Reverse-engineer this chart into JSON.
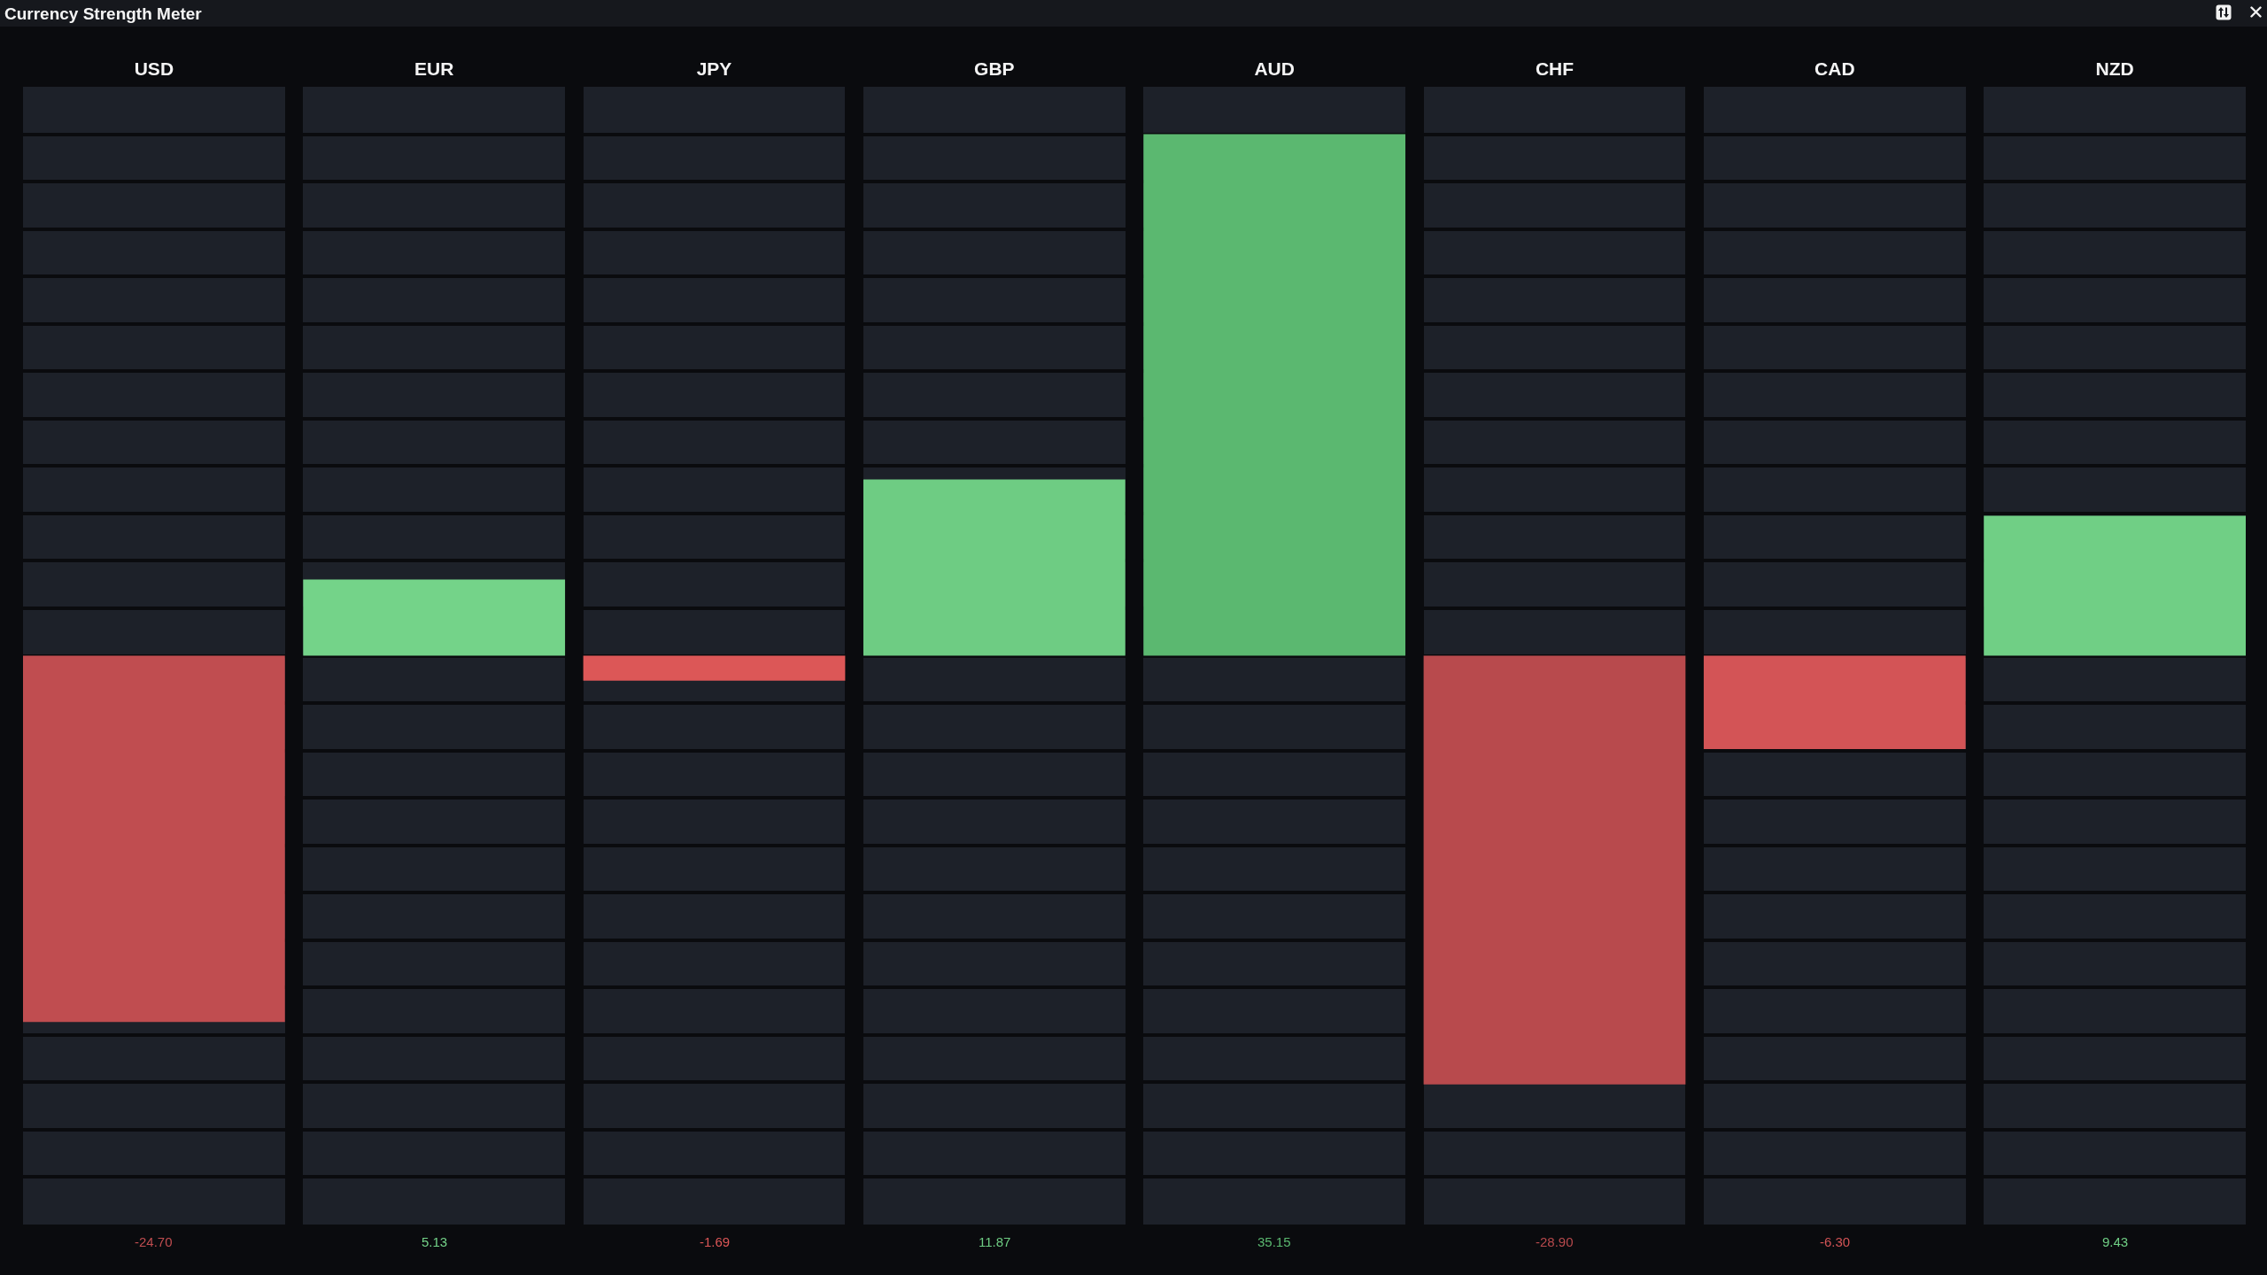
{
  "chart_data": {
    "type": "bar",
    "title": "Currency Strength Meter",
    "categories": [
      "USD",
      "EUR",
      "JPY",
      "GBP",
      "AUD",
      "CHF",
      "CAD",
      "NZD"
    ],
    "values": [
      -24.7,
      5.13,
      -1.69,
      11.87,
      35.15,
      -28.9,
      -6.3,
      9.43
    ],
    "colors": [
      "#c04d50",
      "#74d389",
      "#dc5757",
      "#6ecc83",
      "#5bb870",
      "#b84a4d",
      "#d35456",
      "#70cf85"
    ],
    "value_labels": [
      "-24.70",
      "5.13",
      "-1.69",
      "11.87",
      "35.15",
      "-28.90",
      "-6.30",
      "9.43"
    ],
    "grid": true,
    "tick_labels": "x"
  }
}
